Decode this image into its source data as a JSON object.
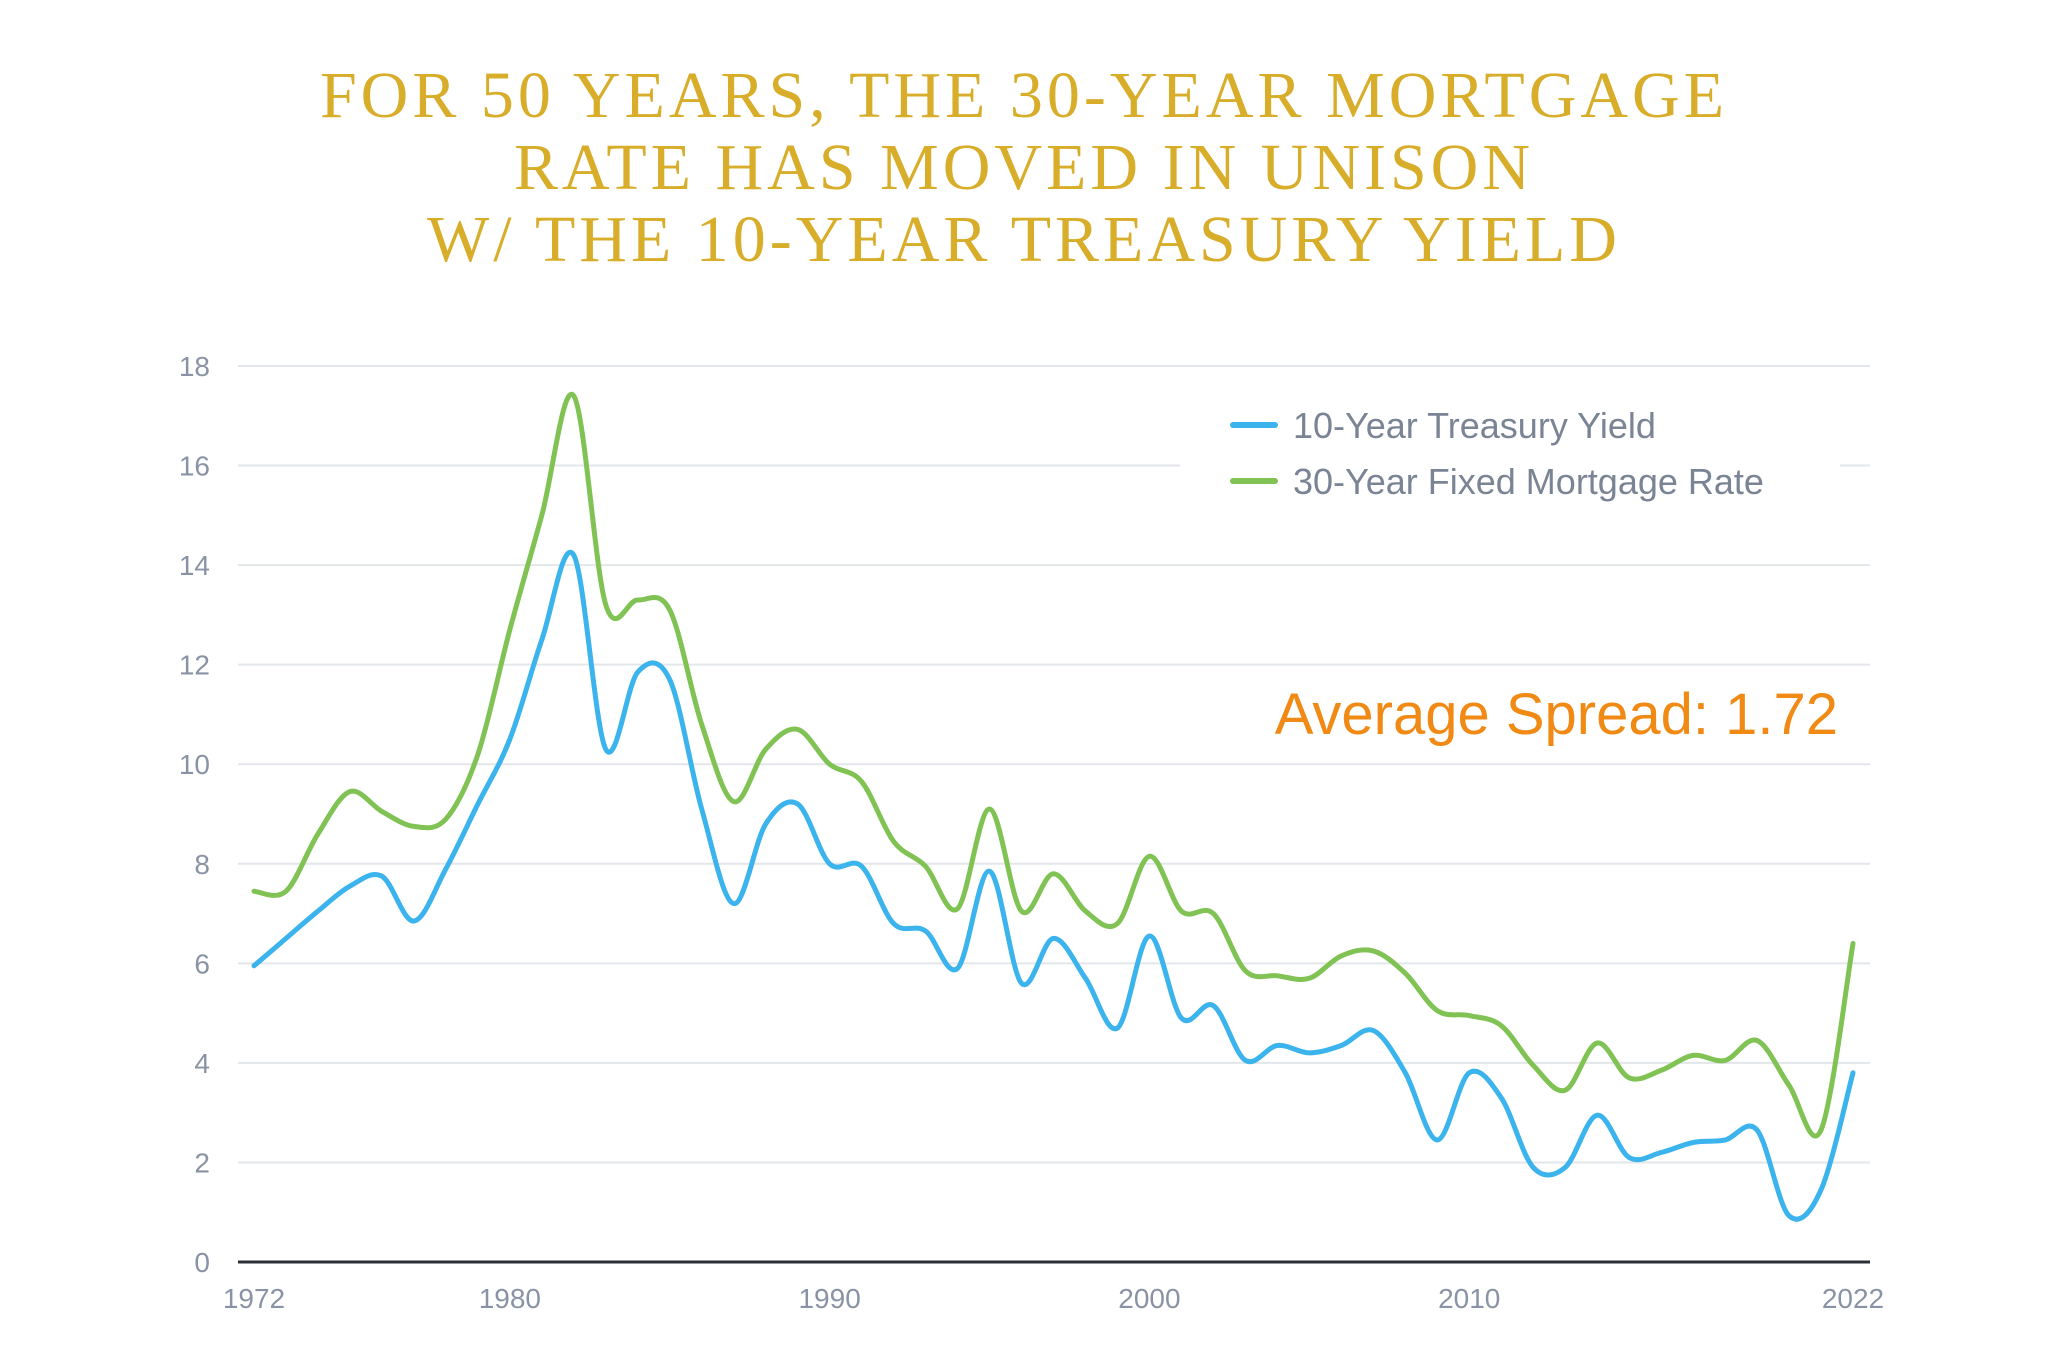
{
  "chart_data": {
    "type": "line",
    "title_lines": [
      "FOR 50 YEARS, THE 30-YEAR MORTGAGE",
      "RATE HAS MOVED IN UNISON",
      "W/ THE 10-YEAR TREASURY YIELD"
    ],
    "xlim": [
      1972,
      2022
    ],
    "ylim": [
      0,
      18
    ],
    "x_ticks": [
      1972,
      1980,
      1990,
      2000,
      2010,
      2022
    ],
    "y_ticks": [
      0,
      2,
      4,
      6,
      8,
      10,
      12,
      14,
      16,
      18
    ],
    "grid": "horizontal",
    "legend_position": "top-right",
    "annotation": "Average Spread: 1.72",
    "colors": {
      "title": "#d8ad2a",
      "treasury": "#3bb3ec",
      "mortgage": "#80c253",
      "annotation": "#f08a14",
      "axis": "#2b2f3a",
      "grid": "#e3e6ea"
    },
    "x": [
      1972,
      1973,
      1974,
      1975,
      1976,
      1977,
      1978,
      1979,
      1980,
      1981,
      1982,
      1983,
      1984,
      1985,
      1986,
      1987,
      1988,
      1989,
      1990,
      1991,
      1992,
      1993,
      1994,
      1995,
      1996,
      1997,
      1998,
      1999,
      2000,
      2001,
      2002,
      2003,
      2004,
      2005,
      2006,
      2007,
      2008,
      2009,
      2010,
      2011,
      2012,
      2013,
      2014,
      2015,
      2016,
      2017,
      2018,
      2019,
      2020,
      2021,
      2022
    ],
    "series": [
      {
        "name": "10-Year Treasury Yield",
        "values": [
          5.95,
          6.5,
          7.05,
          7.55,
          7.75,
          6.85,
          7.9,
          9.2,
          10.5,
          12.5,
          14.2,
          10.3,
          11.85,
          11.7,
          9.1,
          7.2,
          8.8,
          9.2,
          8.0,
          7.95,
          6.8,
          6.65,
          5.9,
          7.85,
          5.6,
          6.5,
          5.7,
          4.7,
          6.55,
          4.9,
          5.15,
          4.05,
          4.35,
          4.2,
          4.35,
          4.65,
          3.8,
          2.45,
          3.8,
          3.3,
          1.9,
          1.9,
          2.95,
          2.1,
          2.2,
          2.4,
          2.45,
          2.65,
          0.93,
          1.45,
          3.8
        ]
      },
      {
        "name": "30-Year Fixed Mortgage Rate",
        "values": [
          7.45,
          7.45,
          8.6,
          9.45,
          9.05,
          8.75,
          8.9,
          10.2,
          12.7,
          15.0,
          17.4,
          13.2,
          13.3,
          13.1,
          10.8,
          9.25,
          10.3,
          10.7,
          10.0,
          9.65,
          8.45,
          7.95,
          7.1,
          9.1,
          7.05,
          7.8,
          7.05,
          6.8,
          8.15,
          7.05,
          7.0,
          5.85,
          5.75,
          5.7,
          6.15,
          6.25,
          5.8,
          5.05,
          4.95,
          4.75,
          3.95,
          3.45,
          4.4,
          3.7,
          3.85,
          4.15,
          4.05,
          4.45,
          3.55,
          2.65,
          6.4
        ]
      }
    ]
  }
}
